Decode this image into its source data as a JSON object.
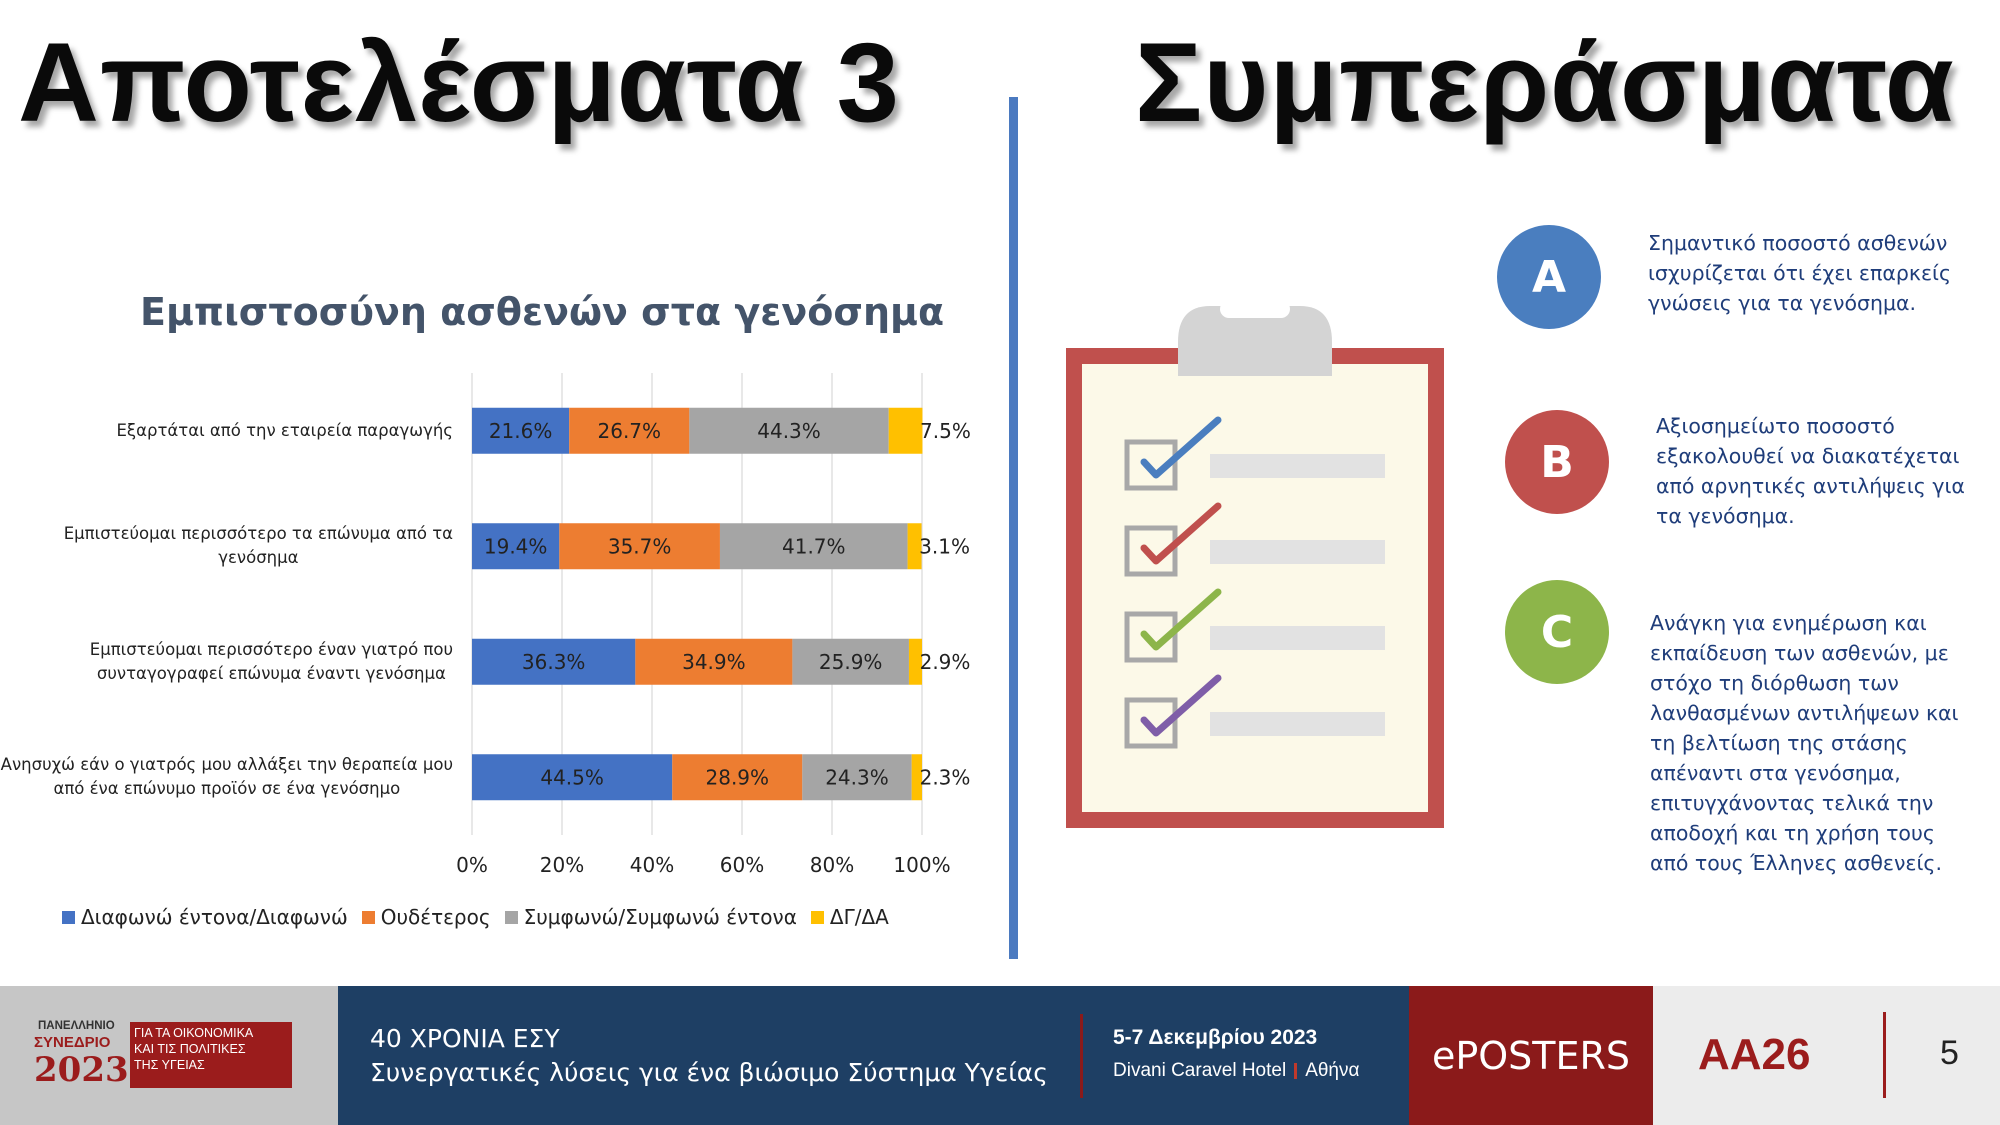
{
  "titles": {
    "left": "Αποτελέσματα 3",
    "right": "Συμπεράσματα"
  },
  "chart_data": {
    "type": "bar",
    "orientation": "horizontal",
    "stacked": true,
    "title": "Εμπιστοσύνη ασθενών στα γενόσημα",
    "categories": [
      [
        "Εξαρτάται από την εταιρεία παραγωγής"
      ],
      [
        "Εμπιστεύομαι περισσότερο τα επώνυμα από τα",
        "γενόσημα"
      ],
      [
        "Εμπιστεύομαι περισσότερο έναν γιατρό που",
        "συνταγογραφεί επώνυμα έναντι γενόσημα"
      ],
      [
        "Ανησυχώ εάν ο γιατρός μου αλλάξει την θεραπεία μου",
        "από ένα επώνυμο προϊόν σε ένα γενόσημο"
      ]
    ],
    "series": [
      {
        "name": "Διαφωνώ έντονα/Διαφωνώ",
        "color": "#4472c4",
        "values": [
          21.6,
          19.4,
          36.3,
          44.5
        ],
        "labels": [
          "21.6%",
          "19.4%",
          "36.3%",
          "44.5%"
        ]
      },
      {
        "name": "Ουδέτερος",
        "color": "#ed7d31",
        "values": [
          26.7,
          35.7,
          34.9,
          28.9
        ],
        "labels": [
          "26.7%",
          "35.7%",
          "34.9%",
          "28.9%"
        ]
      },
      {
        "name": "Συμφωνώ/Συμφωνώ έντονα",
        "color": "#a5a5a5",
        "values": [
          44.3,
          41.7,
          25.9,
          24.3
        ],
        "labels": [
          "44.3%",
          "41.7%",
          "25.9%",
          "24.3%"
        ]
      },
      {
        "name": "ΔΓ/ΔΑ",
        "color": "#ffc000",
        "values": [
          7.5,
          3.1,
          2.9,
          2.3
        ],
        "labels": [
          "7.5%",
          "3.1%",
          "2.9%",
          "2.3%"
        ]
      }
    ],
    "xlim": [
      0,
      100
    ],
    "xticks": [
      "0%",
      "20%",
      "40%",
      "60%",
      "80%",
      "100%"
    ],
    "grid": true,
    "legend": "bottom"
  },
  "conclusions": [
    {
      "letter": "A",
      "color": "#4a7ebf",
      "text": [
        "Σημαντικό ποσοστό ασθενών",
        "ισχυρίζεται ότι έχει επαρκείς",
        "γνώσεις για τα γενόσημα."
      ]
    },
    {
      "letter": "B",
      "color": "#c0504d",
      "text": [
        "Αξιοσημείωτο ποσοστό",
        "εξακολουθεί να διακατέχεται",
        "από αρνητικές αντιλήψεις για",
        "τα γενόσημα."
      ]
    },
    {
      "letter": "C",
      "color": "#8db54a",
      "text": [
        "Ανάγκη για ενημέρωση και",
        "εκπαίδευση των ασθενών, με",
        "στόχο τη διόρθωση των",
        "λανθασμένων αντιλήψεων και",
        "τη βελτίωση της στάσης",
        "απέναντι στα γενόσημα,",
        "επιτυγχάνοντας τελικά την",
        "αποδοχή και τη χρήση τους",
        "από τους Έλληνες ασθενείς."
      ]
    }
  ],
  "checklist": {
    "check_colors": [
      "#4a7ebf",
      "#c0504d",
      "#8db54a",
      "#7f5ea8"
    ]
  },
  "footer": {
    "logo": {
      "line1": "ΠΑΝΕΛΛΗΝΙΟ",
      "line2": "ΣΥΝΕΔΡΙΟ",
      "year": "2023",
      "box_lines": [
        "ΓΙΑ ΤΑ ΟΙΚΟΝΟΜΙΚΑ",
        "ΚΑΙ ΤΙΣ ΠΟΛΙΤΙΚΕΣ",
        "ΤΗΣ ΥΓΕΙΑΣ"
      ]
    },
    "event_title": "40 ΧΡΟΝΙΑ ΕΣΥ",
    "event_subtitle": "Συνεργατικές λύσεις για ένα βιώσιμο Σύστημα Υγείας",
    "dates": "5-7 Δεκεμβρίου 2023",
    "venue": "Divani Caravel Hotel",
    "city": "Αθήνα",
    "eposters": "ePOSTERS",
    "code": "AA26",
    "page": "5"
  }
}
